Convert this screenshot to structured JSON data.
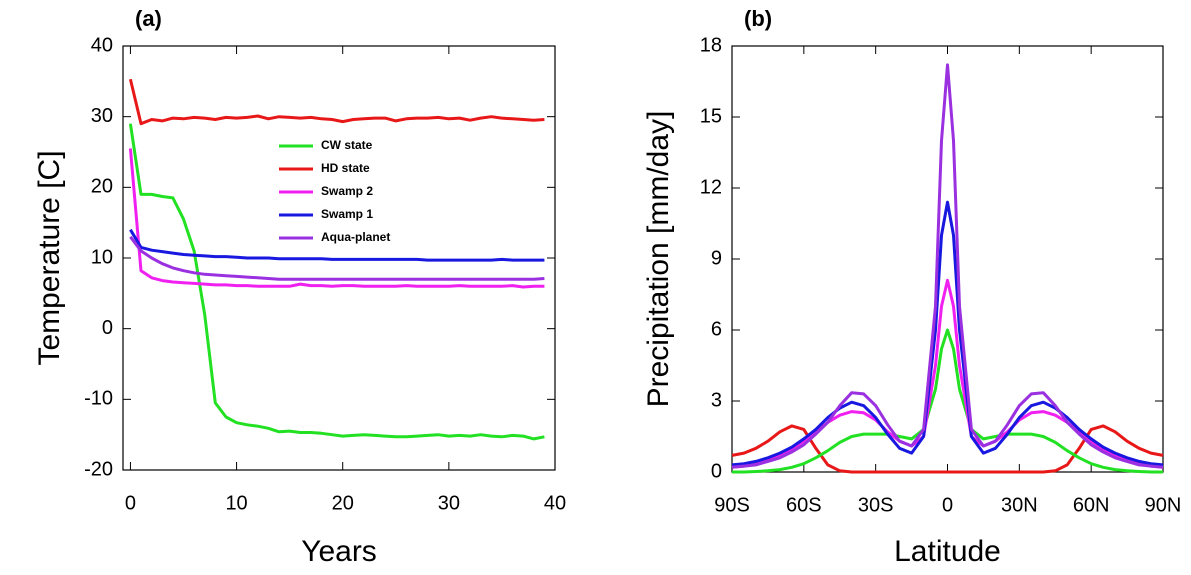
{
  "chart_data": [
    {
      "type": "line",
      "title": "(a)",
      "xlabel": "Years",
      "ylabel": "Temperature [C]",
      "x": [
        0,
        1,
        2,
        3,
        4,
        5,
        6,
        7,
        8,
        9,
        10,
        11,
        12,
        13,
        14,
        15,
        16,
        17,
        18,
        19,
        20,
        21,
        22,
        23,
        24,
        25,
        26,
        27,
        28,
        29,
        30,
        31,
        32,
        33,
        34,
        35,
        36,
        37,
        38,
        39
      ],
      "xlim": [
        -0.7,
        40
      ],
      "xticks": [
        0,
        10,
        20,
        30,
        40
      ],
      "ylim": [
        -20,
        40
      ],
      "yticks": [
        -20,
        -10,
        0,
        10,
        20,
        30,
        40
      ],
      "legend": "center",
      "series": [
        {
          "name": "CW state",
          "color": "#22e022",
          "values": [
            29,
            19,
            19,
            18.7,
            18.5,
            15.5,
            11,
            2,
            -10.5,
            -12.5,
            -13.3,
            -13.6,
            -13.8,
            -14.1,
            -14.6,
            -14.5,
            -14.7,
            -14.7,
            -14.8,
            -15,
            -15.2,
            -15.1,
            -15,
            -15.1,
            -15.2,
            -15.3,
            -15.3,
            -15.2,
            -15.1,
            -15,
            -15.2,
            -15.1,
            -15.2,
            -15,
            -15.2,
            -15.3,
            -15.1,
            -15.2,
            -15.6,
            -15.3
          ]
        },
        {
          "name": "HD state",
          "color": "#e81818",
          "values": [
            35.3,
            29,
            29.6,
            29.4,
            29.8,
            29.7,
            29.9,
            29.8,
            29.6,
            29.9,
            29.8,
            29.9,
            30.1,
            29.7,
            30,
            29.9,
            29.8,
            29.9,
            29.7,
            29.6,
            29.3,
            29.6,
            29.7,
            29.8,
            29.8,
            29.4,
            29.7,
            29.8,
            29.8,
            29.9,
            29.7,
            29.8,
            29.5,
            29.8,
            30,
            29.8,
            29.7,
            29.6,
            29.5,
            29.6
          ]
        },
        {
          "name": "Swamp 2",
          "color": "#f020f0",
          "values": [
            25.5,
            8.2,
            7.2,
            6.8,
            6.6,
            6.5,
            6.4,
            6.3,
            6.2,
            6.2,
            6.1,
            6.1,
            6,
            6,
            6,
            6,
            6.3,
            6.1,
            6.1,
            6,
            6.1,
            6.1,
            6,
            6,
            6,
            6,
            6.1,
            6,
            6,
            6,
            6,
            6.1,
            6,
            6,
            6,
            6,
            6.1,
            5.9,
            6,
            6
          ]
        },
        {
          "name": "Swamp 1",
          "color": "#1818e0",
          "values": [
            14,
            11.5,
            11.1,
            10.9,
            10.7,
            10.5,
            10.4,
            10.3,
            10.2,
            10.2,
            10.1,
            10,
            10,
            10,
            9.9,
            9.9,
            9.9,
            9.9,
            9.9,
            9.8,
            9.8,
            9.8,
            9.8,
            9.8,
            9.8,
            9.8,
            9.8,
            9.8,
            9.7,
            9.7,
            9.7,
            9.7,
            9.7,
            9.7,
            9.7,
            9.8,
            9.7,
            9.7,
            9.7,
            9.7
          ]
        },
        {
          "name": "Aqua-planet",
          "color": "#9a30e0",
          "values": [
            13,
            11,
            10,
            9.2,
            8.6,
            8.2,
            7.9,
            7.7,
            7.6,
            7.5,
            7.4,
            7.3,
            7.2,
            7.1,
            7,
            7,
            7,
            7,
            7,
            7,
            7,
            7,
            7,
            7,
            7,
            7,
            7,
            7,
            7,
            7,
            7,
            7,
            7,
            7,
            7,
            7,
            7,
            7,
            7,
            7.1
          ]
        }
      ]
    },
    {
      "type": "line",
      "title": "(b)",
      "xlabel": "Latitude",
      "ylabel": "Precipitation [mm/day]",
      "x": [
        -90,
        -85,
        -80,
        -75,
        -70,
        -65,
        -60,
        -55,
        -50,
        -45,
        -40,
        -35,
        -30,
        -25,
        -20,
        -15,
        -10,
        -5,
        -2.5,
        0,
        2.5,
        5,
        10,
        15,
        20,
        25,
        30,
        35,
        40,
        45,
        50,
        55,
        60,
        65,
        70,
        75,
        80,
        85,
        90
      ],
      "xlim": [
        -90,
        90
      ],
      "xticks": [
        {
          "value": -90,
          "label": "90S"
        },
        {
          "value": -60,
          "label": "60S"
        },
        {
          "value": -30,
          "label": "30S"
        },
        0,
        {
          "value": 30,
          "label": "30N"
        },
        {
          "value": 60,
          "label": "60N"
        },
        {
          "value": 90,
          "label": "90N"
        }
      ],
      "ylim": [
        0,
        18
      ],
      "yticks": [
        0,
        3,
        6,
        9,
        12,
        15,
        18
      ],
      "series": [
        {
          "color": "#e81818",
          "values": [
            0.7,
            0.8,
            1,
            1.3,
            1.7,
            1.95,
            1.8,
            1,
            0.3,
            0.05,
            0,
            0,
            0,
            0,
            0,
            0,
            0,
            0,
            0,
            0,
            0,
            0,
            0,
            0,
            0,
            0,
            0,
            0,
            0,
            0.05,
            0.3,
            1,
            1.8,
            1.95,
            1.7,
            1.3,
            1,
            0.8,
            0.7
          ]
        },
        {
          "color": "#22e022",
          "values": [
            0,
            0,
            0.02,
            0.05,
            0.1,
            0.2,
            0.35,
            0.6,
            0.9,
            1.25,
            1.5,
            1.6,
            1.6,
            1.6,
            1.5,
            1.4,
            1.8,
            3.5,
            5.2,
            6,
            5.2,
            3.5,
            1.8,
            1.4,
            1.5,
            1.6,
            1.6,
            1.6,
            1.5,
            1.25,
            0.9,
            0.6,
            0.35,
            0.2,
            0.1,
            0.05,
            0.02,
            0,
            0
          ]
        },
        {
          "color": "#f020f0",
          "values": [
            0.2,
            0.25,
            0.35,
            0.5,
            0.7,
            0.95,
            1.3,
            1.7,
            2.1,
            2.4,
            2.55,
            2.5,
            2.2,
            1.7,
            1.3,
            1.1,
            1.5,
            4.5,
            7,
            8.1,
            7,
            4.5,
            1.5,
            1.1,
            1.3,
            1.7,
            2.2,
            2.5,
            2.55,
            2.4,
            2.1,
            1.7,
            1.3,
            0.95,
            0.7,
            0.5,
            0.35,
            0.25,
            0.2
          ]
        },
        {
          "color": "#1818e0",
          "values": [
            0.3,
            0.35,
            0.45,
            0.6,
            0.8,
            1.05,
            1.4,
            1.8,
            2.3,
            2.7,
            2.95,
            2.8,
            2.3,
            1.6,
            1,
            0.8,
            1.5,
            6,
            10,
            11.4,
            10,
            6,
            1.5,
            0.8,
            1,
            1.6,
            2.3,
            2.8,
            2.95,
            2.7,
            2.3,
            1.8,
            1.4,
            1.05,
            0.8,
            0.6,
            0.45,
            0.35,
            0.3
          ]
        },
        {
          "color": "#9a30e0",
          "values": [
            0.2,
            0.25,
            0.3,
            0.45,
            0.6,
            0.85,
            1.15,
            1.6,
            2.1,
            2.8,
            3.35,
            3.3,
            2.8,
            2,
            1.3,
            1.1,
            1.8,
            7,
            14,
            17.2,
            14,
            7,
            1.8,
            1.1,
            1.3,
            2,
            2.8,
            3.3,
            3.35,
            2.8,
            2.1,
            1.6,
            1.15,
            0.85,
            0.6,
            0.45,
            0.3,
            0.25,
            0.2
          ]
        }
      ]
    }
  ]
}
